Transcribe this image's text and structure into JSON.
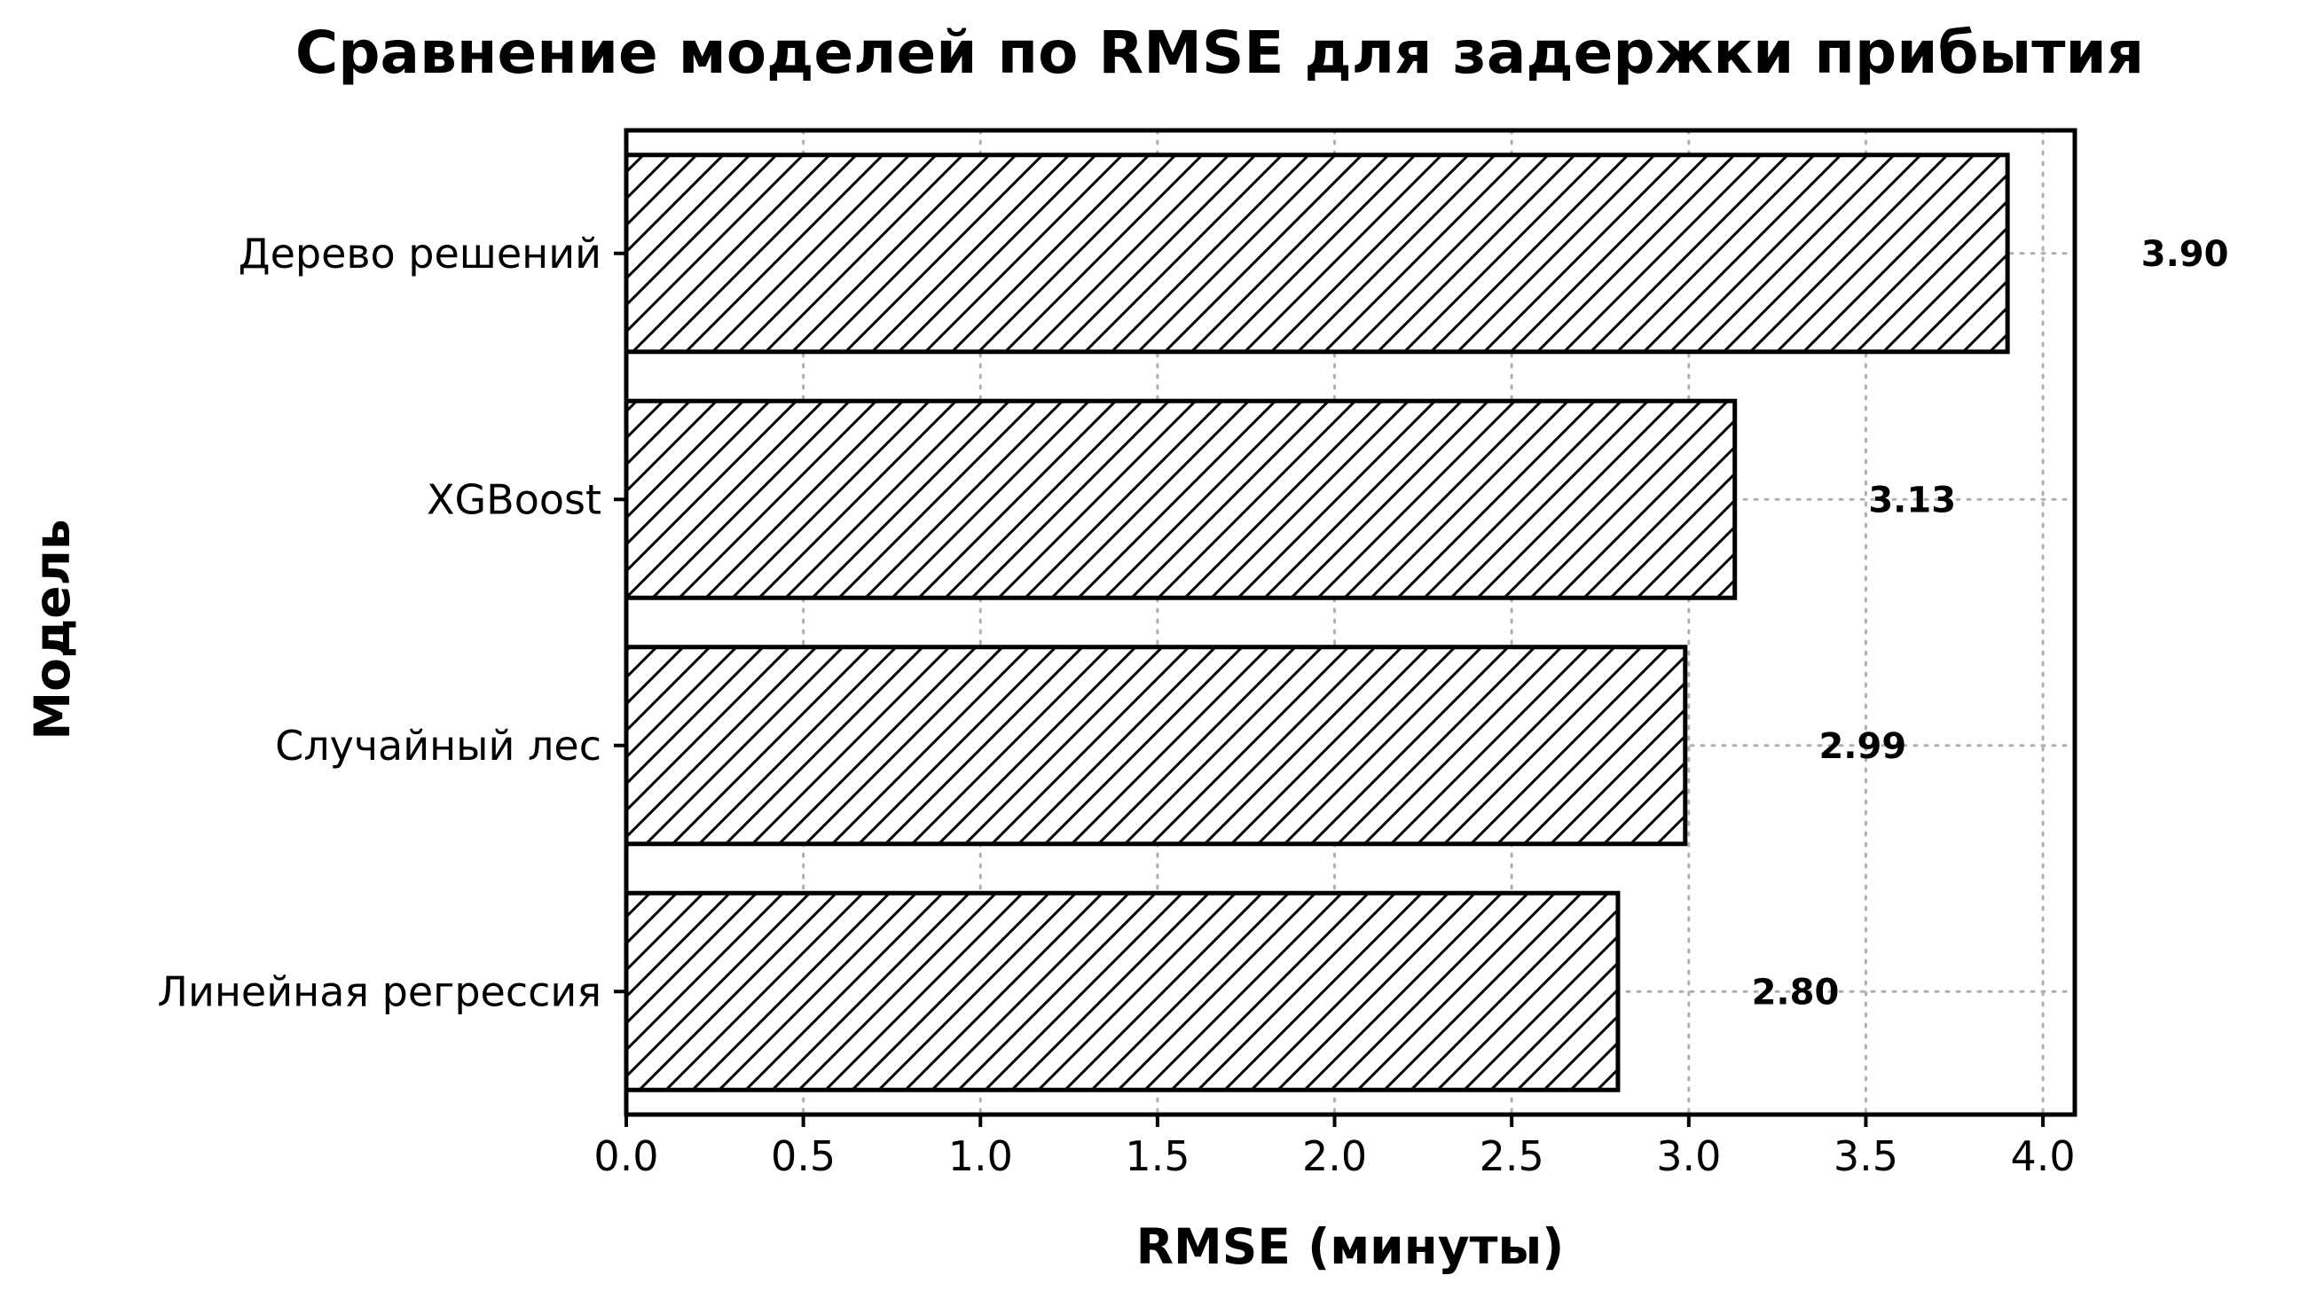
{
  "chart_data": {
    "type": "bar",
    "orientation": "horizontal",
    "title": "Сравнение моделей по RMSE для задержки прибытия",
    "xlabel": "RMSE (минуты)",
    "ylabel": "Модель",
    "categories": [
      "Дерево решений",
      "XGBoost",
      "Случайный лес",
      "Линейная регрессия"
    ],
    "values": [
      3.9,
      3.13,
      2.99,
      2.8
    ],
    "data_labels": [
      "3.90",
      "3.13",
      "2.99",
      "2.80"
    ],
    "xlim": [
      0,
      4.09
    ],
    "xticks": [
      "0.0",
      "0.5",
      "1.0",
      "1.5",
      "2.0",
      "2.5",
      "3.0",
      "3.5",
      "4.0"
    ],
    "grid": true,
    "bar_fill": "hatched",
    "colors": {
      "bar_edge": "#000000",
      "hatch": "#000000",
      "grid": "#b0b0b0",
      "background": "#ffffff"
    }
  }
}
